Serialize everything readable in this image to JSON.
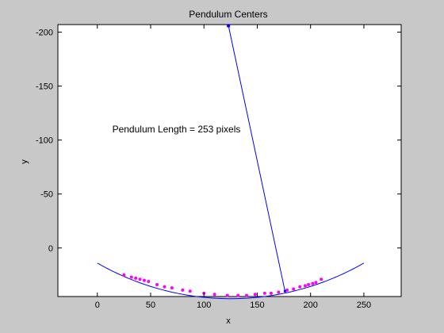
{
  "chart_data": {
    "type": "scatter",
    "title": "Pendulum Centers",
    "xlabel": "x",
    "ylabel": "y",
    "xlim": [
      -37,
      285
    ],
    "ylim": [
      -207,
      45
    ],
    "y_reversed": true,
    "xticks": [
      0,
      50,
      100,
      150,
      200,
      250
    ],
    "yticks": [
      -200,
      -150,
      -100,
      -50,
      0
    ],
    "annotation": {
      "text": "Pendulum Length = 253 pixels",
      "x": 14,
      "y": -107
    },
    "pivot": {
      "x": 123,
      "y": -206
    },
    "bob": {
      "x": 176,
      "y": 40
    },
    "arc": {
      "x_start": 0,
      "x_end": 250,
      "center_x": 125,
      "center_y": -206,
      "radius": 253
    },
    "points": [
      [
        25,
        25
      ],
      [
        32,
        27
      ],
      [
        36,
        28
      ],
      [
        40,
        29
      ],
      [
        44,
        30
      ],
      [
        48,
        31
      ],
      [
        56,
        34
      ],
      [
        63,
        36
      ],
      [
        70,
        37
      ],
      [
        80,
        39
      ],
      [
        87,
        40
      ],
      [
        100,
        42
      ],
      [
        110,
        43
      ],
      [
        122,
        44
      ],
      [
        132,
        44
      ],
      [
        140,
        44
      ],
      [
        148,
        43
      ],
      [
        157,
        42
      ],
      [
        163,
        42
      ],
      [
        170,
        41
      ],
      [
        178,
        39
      ],
      [
        184,
        38
      ],
      [
        190,
        36
      ],
      [
        195,
        35
      ],
      [
        198,
        34
      ],
      [
        202,
        33
      ],
      [
        205,
        32
      ],
      [
        210,
        29
      ]
    ],
    "colors": {
      "line": "#0000ff",
      "points": "#ff00ff",
      "pivot": "#0000ff"
    },
    "grid": false
  }
}
